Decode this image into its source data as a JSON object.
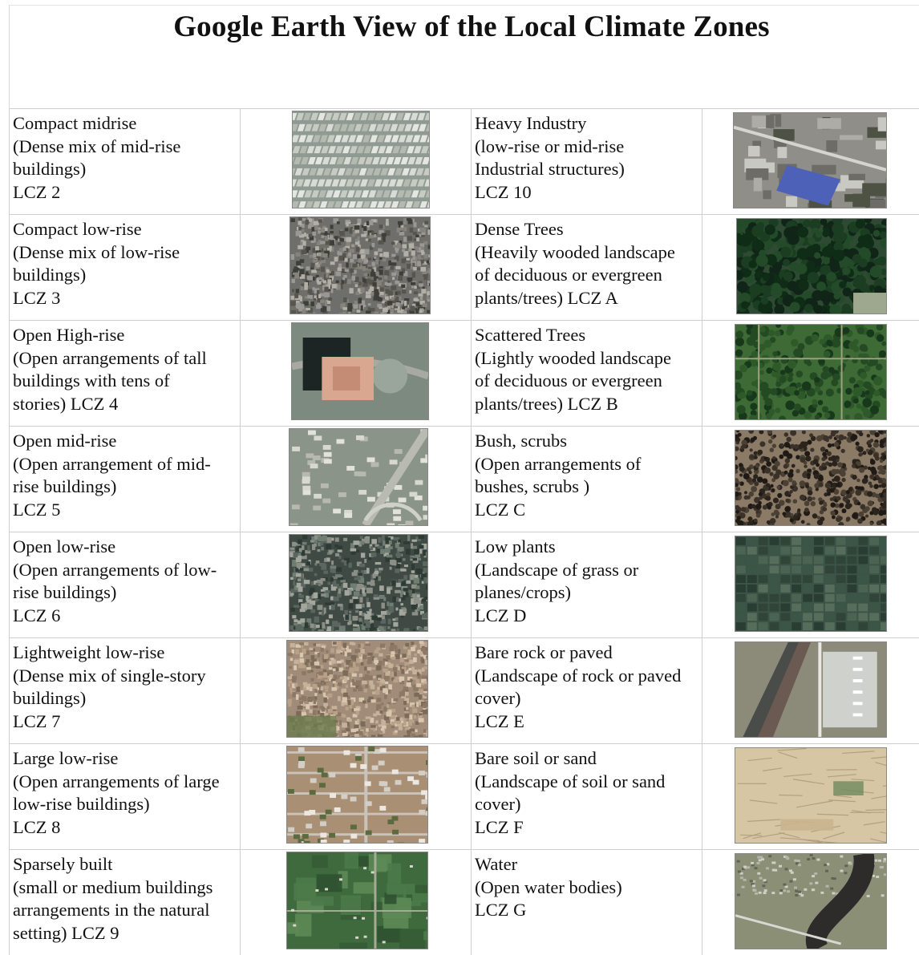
{
  "title": "Google Earth View of the Local Climate Zones",
  "left": [
    {
      "name": "Compact midrise",
      "lines": [
        "(Dense mix of mid-rise",
        "buildings)",
        "LCZ 2"
      ],
      "image": "compact-midrise-satellite"
    },
    {
      "name": "Compact low-rise",
      "lines": [
        "(Dense mix of low-rise",
        "buildings)",
        "LCZ 3"
      ],
      "image": "compact-lowrise-satellite"
    },
    {
      "name": "Open High-rise",
      "lines": [
        "(Open arrangements of tall",
        "buildings with tens of",
        "stories)  LCZ 4"
      ],
      "image": "open-highrise-satellite"
    },
    {
      "name": "Open mid-rise",
      "lines": [
        "(Open arrangement of mid-",
        "rise buildings)",
        "LCZ 5"
      ],
      "image": "open-midrise-satellite"
    },
    {
      "name": "Open low-rise",
      "lines": [
        "(Open arrangements of low-",
        "rise buildings)",
        "LCZ 6"
      ],
      "image": "open-lowrise-satellite"
    },
    {
      "name": "Lightweight low-rise",
      "lines": [
        "(Dense mix of single-story",
        "buildings)",
        "LCZ 7"
      ],
      "image": "lightweight-lowrise-satellite"
    },
    {
      "name": "Large low-rise",
      "lines": [
        "(Open arrangements of large",
        "low-rise buildings)",
        "LCZ 8"
      ],
      "image": "large-lowrise-satellite"
    },
    {
      "name": "Sparsely built",
      "lines": [
        "(small or medium buildings",
        "arrangements in the natural",
        "setting)  LCZ 9"
      ],
      "image": "sparsely-built-satellite"
    }
  ],
  "right": [
    {
      "name": "Heavy Industry",
      "lines": [
        "(low-rise or mid-rise",
        "Industrial structures)",
        "LCZ 10"
      ],
      "image": "heavy-industry-satellite"
    },
    {
      "name": "Dense Trees",
      "lines": [
        "(Heavily wooded landscape",
        "of deciduous or evergreen",
        "plants/trees) LCZ A"
      ],
      "image": "dense-trees-satellite"
    },
    {
      "name": "Scattered Trees",
      "lines": [
        "(Lightly wooded landscape",
        "of deciduous or evergreen",
        "plants/trees) LCZ B"
      ],
      "image": "scattered-trees-satellite"
    },
    {
      "name": "Bush, scrubs",
      "lines": [
        "(Open arrangements of",
        "bushes, scrubs )",
        " LCZ C"
      ],
      "image": "bush-scrubs-satellite"
    },
    {
      "name": "Low plants",
      "lines": [
        "(Landscape of grass or",
        "planes/crops)",
        "LCZ D"
      ],
      "image": "low-plants-satellite"
    },
    {
      "name": "Bare rock or paved",
      "lines": [
        "(Landscape of rock or paved",
        "cover)",
        "LCZ E"
      ],
      "image": "bare-rock-satellite"
    },
    {
      "name": "Bare soil or sand",
      "lines": [
        "(Landscape of soil or sand",
        "cover)",
        "LCZ F"
      ],
      "image": "bare-soil-satellite"
    },
    {
      "name": "Water",
      "lines": [
        "(Open water bodies)",
        " LCZ G"
      ],
      "image": "water-satellite"
    }
  ]
}
